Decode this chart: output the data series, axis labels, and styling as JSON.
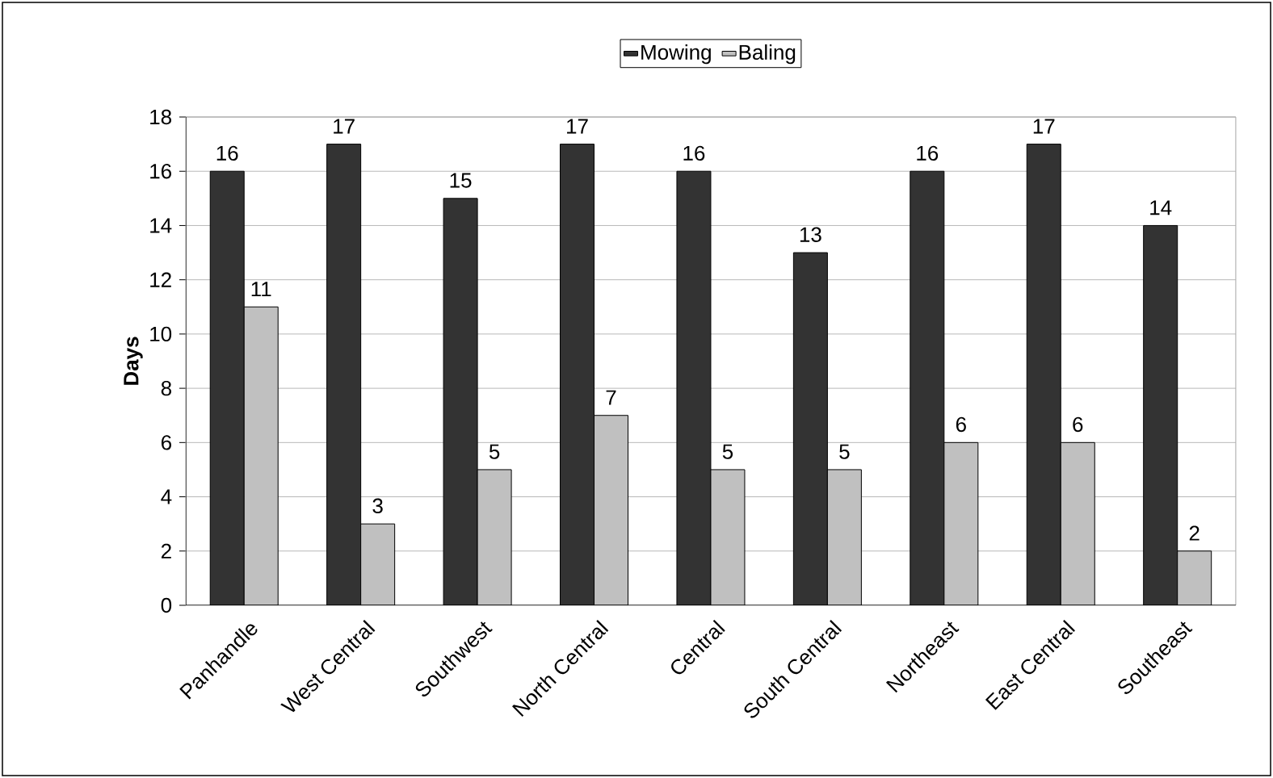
{
  "chart_data": {
    "type": "bar",
    "ylabel": "Days",
    "categories": [
      "Panhandle",
      "West Central",
      "Southwest",
      "North Central",
      "Central",
      "South Central",
      "Northeast",
      "East Central",
      "Southeast"
    ],
    "series": [
      {
        "name": "Mowing",
        "color": "#333333",
        "values": [
          16,
          17,
          15,
          17,
          16,
          13,
          16,
          17,
          14
        ]
      },
      {
        "name": "Baling",
        "color": "#c0c0c0",
        "values": [
          11,
          3,
          5,
          7,
          5,
          5,
          6,
          6,
          2
        ]
      }
    ],
    "ylim": [
      0,
      18
    ],
    "yticks": [
      0,
      2,
      4,
      6,
      8,
      10,
      12,
      14,
      16,
      18
    ],
    "grid": "y",
    "legend": "top",
    "data_labels": true
  }
}
